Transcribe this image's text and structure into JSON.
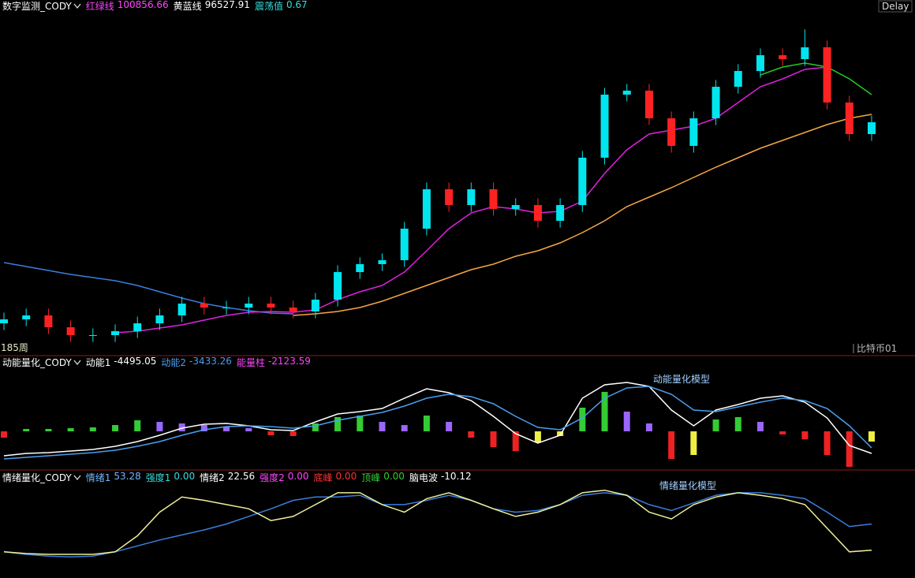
{
  "chart_data": [
    {
      "type": "candlestick",
      "title": "数字监测_CODY",
      "indicators": [
        {
          "name": "红绿线",
          "value": "100856.66",
          "color": "#ff44ff"
        },
        {
          "name": "黄蓝线",
          "value": "96527.91",
          "color": "#ffffff"
        },
        {
          "name": "震荡值",
          "value": "0.67",
          "color": "#33dddd"
        }
      ],
      "status": "Delay",
      "period": "185周",
      "symbol": "比特币01",
      "ylim": [
        50000,
        110000
      ],
      "up_color": "#00e5ee",
      "down_color": "#ff2222",
      "open": [
        54880,
        55580,
        56280,
        54190,
        52790,
        52790,
        53490,
        54880,
        56280,
        58370,
        57670,
        57670,
        58370,
        57670,
        56980,
        59070,
        63950,
        65350,
        66050,
        71630,
        78600,
        75810,
        78600,
        75120,
        75810,
        73020,
        75810,
        84190,
        95350,
        96050,
        91160,
        86280,
        91160,
        96740,
        99530,
        102320,
        101630,
        103720,
        93950,
        88370
      ],
      "high": [
        56780,
        57480,
        57480,
        55390,
        53990,
        54690,
        56080,
        57480,
        59570,
        59570,
        58870,
        59570,
        59570,
        58870,
        60270,
        65150,
        66550,
        67250,
        72830,
        79800,
        79800,
        79800,
        79800,
        77010,
        77010,
        77010,
        85390,
        96550,
        97250,
        97250,
        92360,
        92360,
        97940,
        100730,
        103520,
        103520,
        106900,
        104920,
        95150,
        91660
      ],
      "low": [
        53680,
        54380,
        52990,
        51590,
        51590,
        51590,
        52290,
        53680,
        55080,
        56470,
        56470,
        56470,
        56470,
        55780,
        55780,
        57870,
        62750,
        64150,
        64850,
        70430,
        74610,
        74610,
        73920,
        73920,
        71820,
        71820,
        74610,
        82990,
        94150,
        89960,
        85080,
        85080,
        89960,
        95540,
        98330,
        100430,
        100430,
        92750,
        87170,
        87170
      ],
      "close": [
        55580,
        56280,
        54190,
        52790,
        52790,
        53490,
        54880,
        56280,
        58370,
        57670,
        57670,
        58370,
        57670,
        56980,
        59070,
        63950,
        65350,
        66050,
        71630,
        78600,
        75810,
        78600,
        75120,
        75810,
        73020,
        75810,
        84190,
        95350,
        96050,
        91160,
        86280,
        91160,
        96740,
        99530,
        102320,
        101630,
        103720,
        93950,
        88370,
        90460
      ],
      "series": [
        {
          "color": "#f5a742",
          "values": [
            null,
            null,
            null,
            null,
            null,
            null,
            null,
            null,
            null,
            null,
            null,
            null,
            null,
            56280,
            56560,
            56980,
            57670,
            58790,
            60190,
            61580,
            62980,
            64370,
            65350,
            66740,
            67720,
            69120,
            70930,
            73020,
            75530,
            77210,
            78880,
            80700,
            82510,
            84190,
            85860,
            87260,
            88650,
            90050,
            91160,
            91860
          ]
        },
        {
          "color": "#3a7fdd",
          "values": [
            65630,
            64930,
            64230,
            63530,
            62980,
            62420,
            61580,
            60470,
            59350,
            58370,
            57670,
            57120,
            56700,
            56560,
            null,
            null,
            null,
            null,
            null,
            null,
            null,
            null,
            null,
            null,
            null,
            null,
            null,
            null,
            null,
            null,
            null,
            null,
            null,
            null,
            null,
            null,
            null,
            null,
            null,
            null
          ]
        },
        {
          "color": "#e020e0",
          "values": [
            null,
            null,
            null,
            null,
            null,
            53210,
            53490,
            54050,
            54600,
            55440,
            56280,
            56840,
            56980,
            56840,
            57260,
            59070,
            60470,
            61580,
            63950,
            67720,
            71630,
            74420,
            75530,
            75120,
            74420,
            74700,
            76510,
            81390,
            85580,
            88370,
            89070,
            89770,
            91160,
            93950,
            96740,
            98140,
            99810,
            100230,
            null,
            null
          ]
        },
        {
          "color": "#22cc22",
          "values": [
            null,
            null,
            null,
            null,
            null,
            null,
            null,
            null,
            null,
            null,
            null,
            null,
            null,
            null,
            null,
            null,
            null,
            null,
            null,
            null,
            null,
            null,
            null,
            null,
            null,
            null,
            null,
            null,
            null,
            null,
            null,
            null,
            null,
            null,
            98830,
            100230,
            100930,
            100230,
            98140,
            95350
          ]
        }
      ]
    },
    {
      "type": "momentum",
      "title": "动能量化_CODY",
      "indicators": [
        {
          "name": "动能1",
          "value": "-4495.05",
          "color": "#ffffff"
        },
        {
          "name": "动能2",
          "value": "-3433.26",
          "color": "#4a9ef0"
        },
        {
          "name": "能量柱",
          "value": "-2123.59",
          "color": "#ff44ff"
        }
      ],
      "annotation": "动能量化模型",
      "ylim": [
        -7680,
        13120
      ],
      "bar_colors": [
        "#33cc33",
        "#9966ff",
        "#ee2222",
        "#eeee44"
      ],
      "bars": [
        -1280,
        480,
        480,
        640,
        800,
        1280,
        2240,
        1920,
        1600,
        1280,
        960,
        640,
        -800,
        -960,
        1600,
        2880,
        3200,
        1920,
        1280,
        3200,
        1920,
        -1280,
        -3200,
        -4000,
        -2240,
        -960,
        4800,
        8000,
        4000,
        1600,
        -5600,
        -4800,
        2400,
        2880,
        1920,
        -640,
        -1600,
        -4800,
        -7200,
        -2080
      ],
      "series": [
        {
          "color": "#ffffff",
          "values": [
            -4960,
            -4480,
            -4320,
            -4000,
            -3680,
            -3040,
            -2080,
            -800,
            640,
            1440,
            1600,
            1120,
            320,
            160,
            1920,
            3520,
            4000,
            4640,
            6720,
            8640,
            7840,
            6240,
            3040,
            -480,
            -2400,
            -800,
            6720,
            9440,
            9920,
            9120,
            4320,
            1120,
            4320,
            5440,
            6720,
            7200,
            5920,
            2720,
            -2880,
            -4480
          ]
        },
        {
          "color": "#4a9ef0",
          "values": [
            -5600,
            -5280,
            -4960,
            -4640,
            -4320,
            -3840,
            -3040,
            -2080,
            -800,
            320,
            960,
            1120,
            960,
            640,
            1120,
            2240,
            3040,
            3840,
            5120,
            6720,
            7520,
            7040,
            5600,
            3040,
            800,
            320,
            2720,
            6720,
            8800,
            9120,
            7520,
            4320,
            4000,
            4960,
            5920,
            6720,
            6240,
            4640,
            1120,
            -3360
          ]
        }
      ]
    },
    {
      "type": "line",
      "title": "情绪量化_CODY",
      "indicators": [
        {
          "name": "情绪1",
          "value": "53.28",
          "color": "#6fb8ff"
        },
        {
          "name": "强度1",
          "value": "0.00",
          "color": "#33dddd"
        },
        {
          "name": "情绪2",
          "value": "22.56",
          "color": "#ffffff"
        },
        {
          "name": "强度2",
          "value": "0.00",
          "color": "#ff44ff"
        },
        {
          "name": "底峰",
          "value": "0.00",
          "color": "#ff3333"
        },
        {
          "name": "顶峰",
          "value": "0.00",
          "color": "#33cc33"
        },
        {
          "name": "脑电波",
          "value": "-10.12",
          "color": "#ffffff"
        }
      ],
      "annotation": "情绪量化模型",
      "ylim": [
        -10,
        104
      ],
      "series": [
        {
          "color": "#3a7fdd",
          "values": [
            21,
            18,
            16,
            15,
            16,
            21,
            28,
            35,
            41,
            47,
            54,
            63,
            72,
            82,
            86,
            86,
            88,
            77,
            77,
            82,
            88,
            82,
            72,
            68,
            70,
            77,
            88,
            91,
            88,
            77,
            70,
            79,
            88,
            91,
            91,
            88,
            84,
            68,
            51,
            54
          ]
        },
        {
          "color": "#eeee99",
          "values": [
            21,
            19,
            18,
            18,
            18,
            21,
            40,
            68,
            86,
            82,
            77,
            72,
            58,
            63,
            77,
            91,
            91,
            77,
            68,
            84,
            91,
            82,
            72,
            63,
            68,
            77,
            91,
            94,
            88,
            68,
            60,
            77,
            86,
            91,
            88,
            84,
            77,
            49,
            21,
            23
          ]
        }
      ]
    }
  ]
}
